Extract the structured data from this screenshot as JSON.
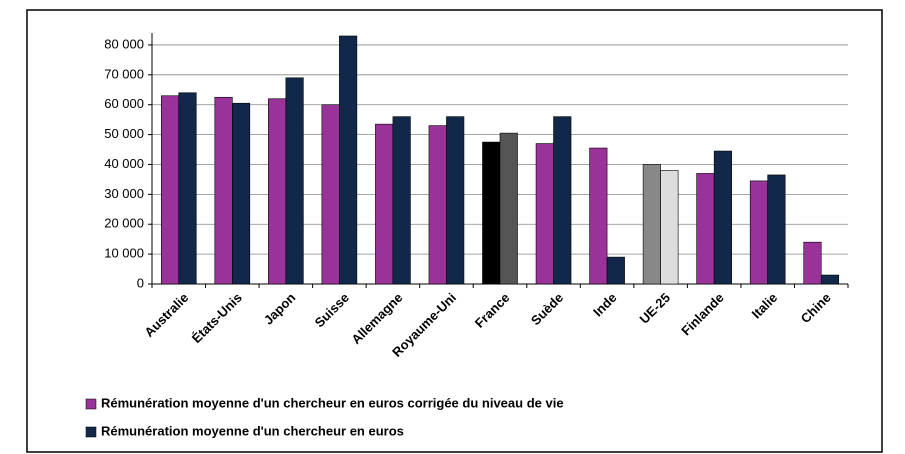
{
  "chart_data": {
    "type": "bar",
    "categories": [
      "Australie",
      "États-Unis",
      "Japon",
      "Suisse",
      "Allemagne",
      "Royaume-Uni",
      "France",
      "Suède",
      "Inde",
      "UE-25",
      "Finlande",
      "Italie",
      "Chine"
    ],
    "series": [
      {
        "name": "Rémunération moyenne d'un chercheur en euros corrigée du niveau de vie",
        "color": "#993399",
        "colors": [
          "#993399",
          "#993399",
          "#993399",
          "#993399",
          "#993399",
          "#993399",
          "#000000",
          "#993399",
          "#993399",
          "#888888",
          "#993399",
          "#993399",
          "#993399"
        ],
        "values": [
          63000,
          62500,
          62000,
          60000,
          53500,
          53000,
          47500,
          47000,
          45500,
          40000,
          37000,
          34500,
          14000
        ]
      },
      {
        "name": "Rémunération moyenne d'un chercheur en euros",
        "color": "#12284a",
        "colors": [
          "#12284a",
          "#12284a",
          "#12284a",
          "#12284a",
          "#12284a",
          "#12284a",
          "#555555",
          "#12284a",
          "#12284a",
          "#dddddd",
          "#12284a",
          "#12284a",
          "#12284a"
        ],
        "values": [
          64000,
          60500,
          69000,
          83000,
          56000,
          56000,
          50500,
          56000,
          9000,
          38000,
          44500,
          36500,
          3000
        ]
      }
    ],
    "ylim": [
      0,
      84000
    ],
    "yticks": [
      0,
      {
        "value": 10000,
        "label": "10 000"
      },
      {
        "value": 20000,
        "label": "20 000"
      },
      {
        "value": 30000,
        "label": "30 000"
      },
      {
        "value": 40000,
        "label": "40 000"
      },
      {
        "value": 50000,
        "label": "50 000"
      },
      {
        "value": 60000,
        "label": "60 000"
      },
      {
        "value": 70000,
        "label": "70 000"
      },
      {
        "value": 80000,
        "label": "80 000"
      }
    ],
    "grid": true
  }
}
